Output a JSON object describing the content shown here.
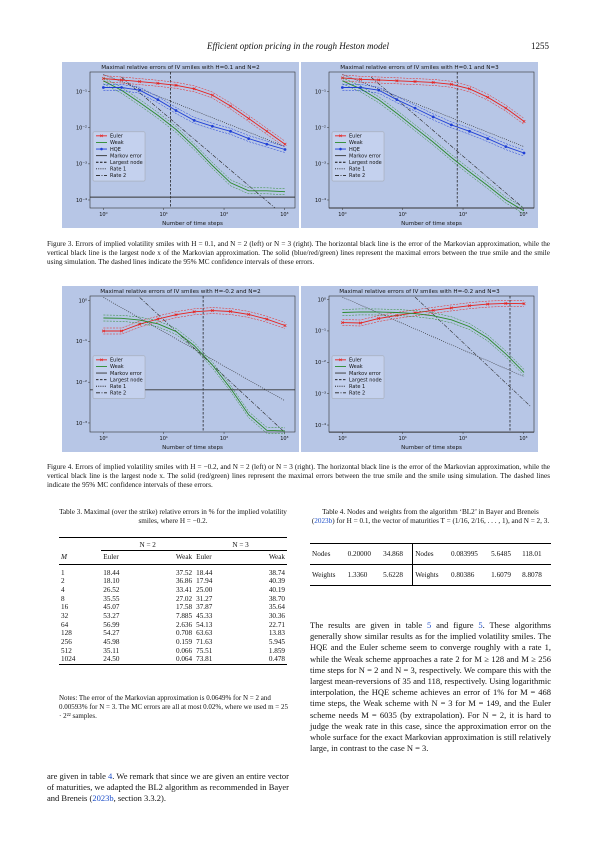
{
  "header": {
    "title": "Efficient option pricing in the rough Heston model",
    "page": "1255"
  },
  "fig3": {
    "caption": "Figure 3. Errors of implied volatility smiles with H = 0.1, and N = 2 (left) or N = 3 (right). The horizontal black line is the error of the Markovian approximation, while the vertical black line is the largest node x of the Markovian approximation. The solid (blue/red/green) lines represent the maximal errors between the true smile and the smile using simulation. The dashed lines indicate the 95% MC confidence intervals of these errors."
  },
  "fig4": {
    "caption": "Figure 4. Errors of implied volatility smiles with H = −0.2, and N = 2 (left) or N = 3 (right). The horizontal black line is the error of the Markovian approximation, while the vertical black line is the largest node x. The solid (red/green) lines represent the maximal errors between the true smile and the smile using simulation. The dashed lines indicate the 95% MC confidence intervals of these errors."
  },
  "legend_labels": {
    "euler": "Euler",
    "weak": "Weak",
    "hqe": "HQE",
    "markov": "Markov error",
    "largest": "Largest node",
    "rate1": "Rate 1",
    "rate2": "Rate 2"
  },
  "chart_data": [
    {
      "type": "line",
      "title": "Maximal relative errors of IV smiles with H=0.1 and N=2",
      "xlabel": "Number of time steps",
      "ylabel": "",
      "xscale": "log",
      "yscale": "log",
      "xlim": [
        0.6,
        1500
      ],
      "ylim": [
        6e-05,
        0.35
      ],
      "x": [
        1,
        2,
        4,
        8,
        16,
        32,
        64,
        128,
        256,
        512,
        1024
      ],
      "xticks": [
        "10⁰",
        "10¹",
        "10²",
        "10³"
      ],
      "yticks": [
        "10⁻¹",
        "10⁻²",
        "10⁻³",
        "10⁻⁴"
      ],
      "series": [
        {
          "name": "Euler",
          "color": "#e8201c",
          "marker": "x",
          "values": [
            0.23,
            0.21,
            0.19,
            0.17,
            0.15,
            0.12,
            0.08,
            0.04,
            0.018,
            0.008,
            0.0035
          ]
        },
        {
          "name": "Weak",
          "color": "#2a8a2a",
          "values": [
            0.2,
            0.11,
            0.05,
            0.022,
            0.009,
            0.003,
            0.0009,
            0.0003,
            0.00018,
            0.00018,
            0.00017
          ]
        },
        {
          "name": "HQE",
          "color": "#1f3fd6",
          "marker": "o",
          "values": [
            0.13,
            0.13,
            0.11,
            0.06,
            0.03,
            0.016,
            0.011,
            0.008,
            0.005,
            0.0035,
            0.0025
          ]
        },
        {
          "name": "Markov error",
          "color": "#333333",
          "values": [
            0.00012,
            0.00012,
            0.00012,
            0.00012,
            0.00012,
            0.00012,
            0.00012,
            0.00012,
            0.00012,
            0.00012,
            0.00012
          ]
        }
      ],
      "largest_node_x": 13,
      "rate1": [
        [
          1,
          0.3
        ],
        [
          1024,
          0.003
        ]
      ],
      "rate2": [
        [
          2,
          0.25
        ],
        [
          700,
          6e-05
        ]
      ],
      "legend": "center-left",
      "grid": false
    },
    {
      "type": "line",
      "title": "Maximal relative errors of IV smiles with H=0.1 and N=3",
      "xlabel": "Number of time steps",
      "ylabel": "",
      "xscale": "log",
      "yscale": "log",
      "xlim": [
        0.6,
        1500
      ],
      "ylim": [
        6e-05,
        0.35
      ],
      "x": [
        1,
        2,
        4,
        8,
        16,
        32,
        64,
        128,
        256,
        512,
        1024
      ],
      "xticks": [
        "10⁰",
        "10¹",
        "10²",
        "10³"
      ],
      "yticks": [
        "10⁻¹",
        "10⁻²",
        "10⁻³",
        "10⁻⁴"
      ],
      "series": [
        {
          "name": "Euler",
          "color": "#e8201c",
          "marker": "x",
          "values": [
            0.24,
            0.22,
            0.21,
            0.2,
            0.19,
            0.18,
            0.16,
            0.12,
            0.07,
            0.035,
            0.015
          ]
        },
        {
          "name": "Weak",
          "color": "#2a8a2a",
          "values": [
            0.2,
            0.12,
            0.06,
            0.025,
            0.01,
            0.004,
            0.0015,
            0.0006,
            0.00025,
            0.0001,
            5e-05
          ]
        },
        {
          "name": "HQE",
          "color": "#1f3fd6",
          "marker": "o",
          "values": [
            0.13,
            0.13,
            0.11,
            0.06,
            0.035,
            0.02,
            0.012,
            0.008,
            0.005,
            0.003,
            0.002
          ]
        },
        {
          "name": "Markov error",
          "color": "#333333",
          "values": [
            6e-05,
            6e-05,
            6e-05,
            6e-05,
            6e-05,
            6e-05,
            6e-05,
            6e-05,
            6e-05,
            6e-05,
            6e-05
          ]
        }
      ],
      "largest_node_x": 80,
      "rate1": [
        [
          1,
          0.3
        ],
        [
          1024,
          0.003
        ]
      ],
      "rate2": [
        [
          3,
          0.25
        ],
        [
          1000,
          6e-05
        ]
      ],
      "legend": "center-left",
      "grid": false
    },
    {
      "type": "line",
      "title": "Maximal relative errors of IV smiles with H=-0.2 and N=2",
      "xlabel": "Number of time steps",
      "ylabel": "",
      "xscale": "log",
      "yscale": "log",
      "xlim": [
        0.6,
        1500
      ],
      "ylim": [
        0.0006,
        1.3
      ],
      "x": [
        1,
        2,
        4,
        8,
        16,
        32,
        64,
        128,
        256,
        512,
        1024
      ],
      "xticks": [
        "10⁰",
        "10¹",
        "10²",
        "10³"
      ],
      "yticks": [
        "10⁰",
        "10⁻¹",
        "10⁻²",
        "10⁻³"
      ],
      "series": [
        {
          "name": "Euler",
          "color": "#e8201c",
          "marker": "x",
          "values": [
            0.18,
            0.18,
            0.265,
            0.355,
            0.451,
            0.533,
            0.57,
            0.543,
            0.46,
            0.351,
            0.245
          ]
        },
        {
          "name": "Weak",
          "color": "#2a8a2a",
          "values": [
            0.375,
            0.369,
            0.334,
            0.27,
            0.176,
            0.0789,
            0.0264,
            0.00708,
            0.00159,
            0.00066,
            0.00064
          ]
        },
        {
          "name": "Markov error",
          "color": "#333333",
          "values": [
            0.00649,
            0.00649,
            0.00649,
            0.00649,
            0.00649,
            0.00649,
            0.00649,
            0.00649,
            0.00649,
            0.00649,
            0.00649
          ]
        }
      ],
      "largest_node_x": 45,
      "rate1": [
        [
          1,
          1.2
        ],
        [
          1024,
          0.0035
        ]
      ],
      "rate2": [
        [
          4,
          1.2
        ],
        [
          1000,
          0.0006
        ]
      ],
      "legend": "center-left",
      "grid": false
    },
    {
      "type": "line",
      "title": "Maximal relative errors of IV smiles with H=-0.2 and N=3",
      "xlabel": "Number of time steps",
      "ylabel": "",
      "xscale": "log",
      "yscale": "log",
      "xlim": [
        0.6,
        1500
      ],
      "ylim": [
        6e-05,
        1.3
      ],
      "x": [
        1,
        2,
        4,
        8,
        16,
        32,
        64,
        128,
        256,
        512,
        1024
      ],
      "xticks": [
        "10⁰",
        "10¹",
        "10²",
        "10³"
      ],
      "yticks": [
        "10⁰",
        "10⁻¹",
        "10⁻²",
        "10⁻³",
        "10⁻⁴"
      ],
      "series": [
        {
          "name": "Euler",
          "color": "#e8201c",
          "marker": "x",
          "values": [
            0.184,
            0.179,
            0.25,
            0.313,
            0.379,
            0.453,
            0.541,
            0.636,
            0.716,
            0.755,
            0.738
          ]
        },
        {
          "name": "Weak",
          "color": "#2a8a2a",
          "values": [
            0.387,
            0.404,
            0.402,
            0.387,
            0.356,
            0.304,
            0.227,
            0.138,
            0.0595,
            0.0186,
            0.00478
          ]
        },
        {
          "name": "Markov error",
          "color": "#333333",
          "values": [
            5.93e-05,
            5.93e-05,
            5.93e-05,
            5.93e-05,
            5.93e-05,
            5.93e-05,
            5.93e-05,
            5.93e-05,
            5.93e-05,
            5.93e-05,
            5.93e-05
          ]
        }
      ],
      "largest_node_x": 600,
      "rate1": [
        [
          1,
          1.2
        ],
        [
          1024,
          0.0035
        ]
      ],
      "rate2": [
        [
          16,
          1.2
        ],
        [
          1300,
          0.0004
        ]
      ],
      "legend": "center-left",
      "grid": false
    }
  ],
  "table3": {
    "caption": "Table 3. Maximal (over the strike) relative errors in % for the implied volatility smiles, where H = −0.2.",
    "group_headers": [
      "N = 2",
      "N = 3"
    ],
    "col_headers": [
      "M",
      "Euler",
      "Weak",
      "Euler",
      "Weak"
    ],
    "rows": [
      [
        "1",
        "18.44",
        "37.52",
        "18.44",
        "38.74"
      ],
      [
        "2",
        "18.10",
        "36.86",
        "17.94",
        "40.39"
      ],
      [
        "4",
        "26.52",
        "33.41",
        "25.00",
        "40.19"
      ],
      [
        "8",
        "35.55",
        "27.02",
        "31.27",
        "38.70"
      ],
      [
        "16",
        "45.07",
        "17.58",
        "37.87",
        "35.64"
      ],
      [
        "32",
        "53.27",
        "7.885",
        "45.33",
        "30.36"
      ],
      [
        "64",
        "56.99",
        "2.636",
        "54.13",
        "22.71"
      ],
      [
        "128",
        "54.27",
        "0.708",
        "63.63",
        "13.83"
      ],
      [
        "256",
        "45.98",
        "0.159",
        "71.63",
        "5.945"
      ],
      [
        "512",
        "35.11",
        "0.066",
        "75.51",
        "1.859"
      ],
      [
        "1024",
        "24.50",
        "0.064",
        "73.81",
        "0.478"
      ]
    ],
    "notes": "Notes: The error of the Markovian approximation is 0.0649% for N = 2 and 0.00593% for N = 3. The MC errors are all at most 0.02%, where we used m = 25 · 2²² samples."
  },
  "table4": {
    "caption_pre": "Table 4. Nodes and weights from the algorithm ‘BL2’ in Bayer and Breneis (",
    "caption_link": "2023b",
    "caption_post": ") for H = 0.1, the vector of maturities T = (1/16, 2/16, . . . , 1), and N = 2, 3.",
    "rows": [
      [
        "Nodes",
        "0.20000",
        "34.868",
        "Nodes",
        "0.083995",
        "5.6485",
        "118.01"
      ],
      [
        "Weights",
        "1.3360",
        "5.6228",
        "Weights",
        "0.80386",
        "1.6079",
        "8.8078"
      ]
    ]
  },
  "left_para": {
    "p1": "are given in table ",
    "l1": "4",
    "p2": ". We remark that since we are given an entire vector of maturities, we adapted the BL2 algorithm as recommended in Bayer and Breneis (",
    "l2": "2023b",
    "p3": ", section 3.3.2)."
  },
  "right_para": {
    "p1": "The results are given in table ",
    "l1": "5",
    "p2": " and figure ",
    "l2": "5",
    "p3": ". These algorithms generally show similar results as for the implied volatility smiles. The HQE and the Euler scheme seem to converge roughly with a rate 1, while the Weak scheme approaches a rate 2 for M ≥ 128 and M ≥ 256 time steps for N = 2 and N = 3, respectively. We compare this with the largest mean-reversions of 35 and 118, respectively. Using logarithmic interpolation, the HQE scheme achieves an error of 1% for M = 468 time steps, the Weak scheme with N = 3 for M = 149, and the Euler scheme needs M = 6035 (by extrapolation). For N = 2, it is hard to judge the weak rate in this case, since the approximation error on the whole surface for the exact Markovian approximation is still relatively large, in contrast to the case N = 3."
  }
}
